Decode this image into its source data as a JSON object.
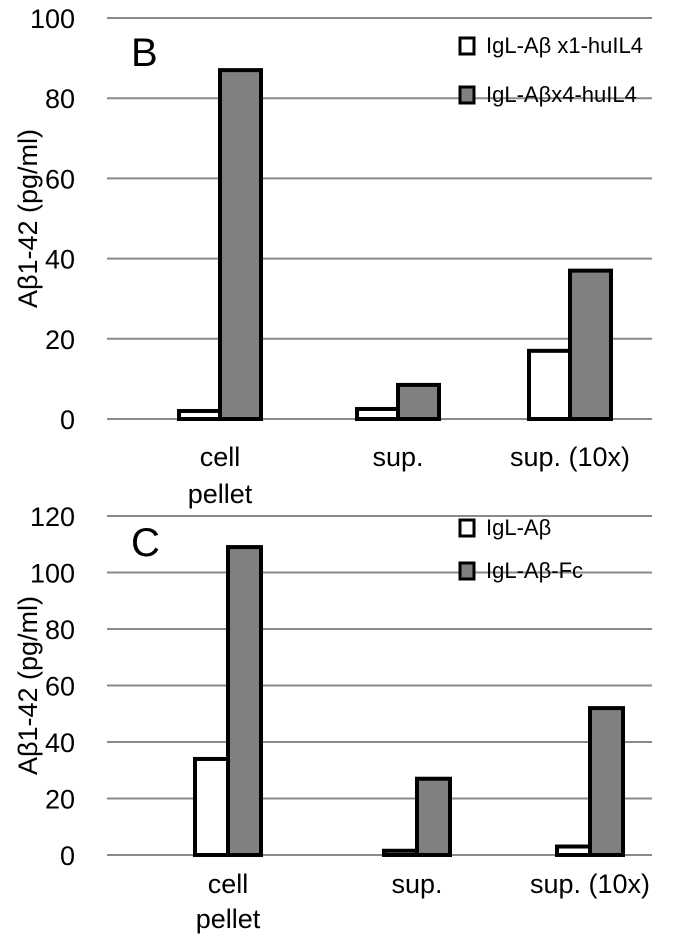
{
  "chart_data": [
    {
      "type": "bar",
      "panel_label": "B",
      "ylabel": "Aβ1-42 (pg/ml)",
      "xlabel": "",
      "categories": [
        "cell pellet",
        "sup.",
        "sup. (10x)"
      ],
      "yticks": [
        0,
        20,
        40,
        60,
        80,
        100
      ],
      "ylim": [
        0,
        100
      ],
      "grid": true,
      "legend_position": "top-right",
      "colors": [
        "#ffffff",
        "#808080"
      ],
      "series": [
        {
          "name": "IgL-Aβ x1-huIL4",
          "values": [
            2,
            2.5,
            17
          ]
        },
        {
          "name": "IgL-Aβx4-huIL4",
          "values": [
            87,
            8.5,
            37
          ]
        }
      ]
    },
    {
      "type": "bar",
      "panel_label": "C",
      "ylabel": "Aβ1-42 (pg/ml)",
      "xlabel": "",
      "categories": [
        "cell pellet",
        "sup.",
        "sup. (10x)"
      ],
      "yticks": [
        0,
        20,
        40,
        60,
        80,
        100,
        120
      ],
      "ylim": [
        0,
        120
      ],
      "grid": true,
      "legend_position": "top-right",
      "colors": [
        "#ffffff",
        "#808080"
      ],
      "series": [
        {
          "name": "IgL-Aβ",
          "values": [
            34,
            1.5,
            3
          ]
        },
        {
          "name": "IgL-Aβ-Fc",
          "values": [
            109,
            27,
            52
          ]
        }
      ]
    }
  ]
}
